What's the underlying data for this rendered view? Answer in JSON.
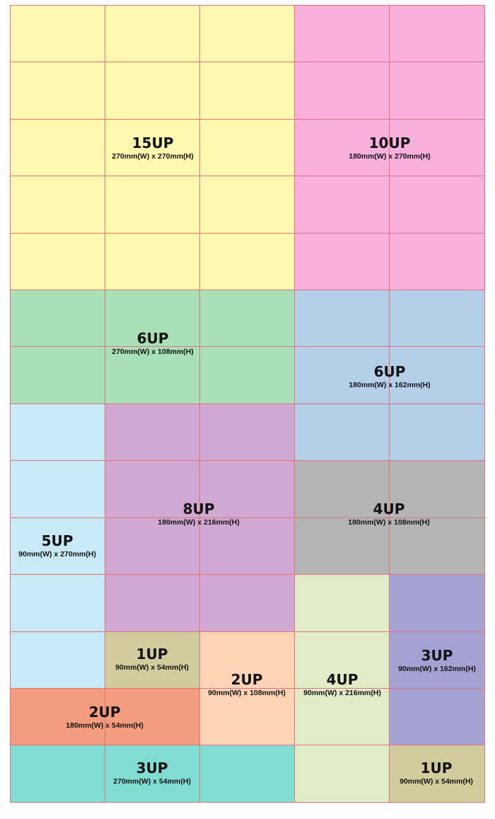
{
  "colors": {
    "grid_line": "#e4717b",
    "background": "#ffffff"
  },
  "regions": [
    {
      "id": "15up-a",
      "title": "15UP",
      "subtitle": "270mm(W) x 270mm(H)",
      "color": "#fff9b0"
    },
    {
      "id": "10up",
      "title": "10UP",
      "subtitle": "180mm(W) x 270mm(H)",
      "color": "#f8b0dc"
    },
    {
      "id": "6up-green",
      "title": "6UP",
      "subtitle": "270mm(W) x 108mm(H)",
      "color": "#a8e0b8"
    },
    {
      "id": "6up-blue",
      "title": "6UP",
      "subtitle": "180mm(W) x 162mm(H)",
      "color": "#b4d0e8"
    },
    {
      "id": "5up",
      "title": "5UP",
      "subtitle": "90mm(W) x 270mm(H)",
      "color": "#c8eaf8"
    },
    {
      "id": "8up",
      "title": "8UP",
      "subtitle": "180mm(W) x 216mm(H)",
      "color": "#d0a8d2"
    },
    {
      "id": "4up-gray",
      "title": "4UP",
      "subtitle": "180mm(W) x 108mm(H)",
      "color": "#b4b4b4"
    },
    {
      "id": "1up-a",
      "title": "1UP",
      "subtitle": "90mm(W) x 54mm(H)",
      "color": "#d0cc9c"
    },
    {
      "id": "2up-peach",
      "title": "2UP",
      "subtitle": "90mm(W) x 108mm(H)",
      "color": "#fdd4b6"
    },
    {
      "id": "4up-green",
      "title": "4UP",
      "subtitle": "90mm(W) x 216mm(H)",
      "color": "#e0ecc6"
    },
    {
      "id": "3up-purple",
      "title": "3UP",
      "subtitle": "90mm(W) x 162mm(H)",
      "color": "#a4a2d2"
    },
    {
      "id": "2up-salmon",
      "title": "2UP",
      "subtitle": "180mm(W) x 54mm(H)",
      "color": "#f49c7e"
    },
    {
      "id": "3up-teal",
      "title": "3UP",
      "subtitle": "270mm(W) x 54mm(H)",
      "color": "#80ddd4"
    },
    {
      "id": "1up-b",
      "title": "1UP",
      "subtitle": "90mm(W) x 54mm(H)",
      "color": "#d0cc9c"
    }
  ]
}
